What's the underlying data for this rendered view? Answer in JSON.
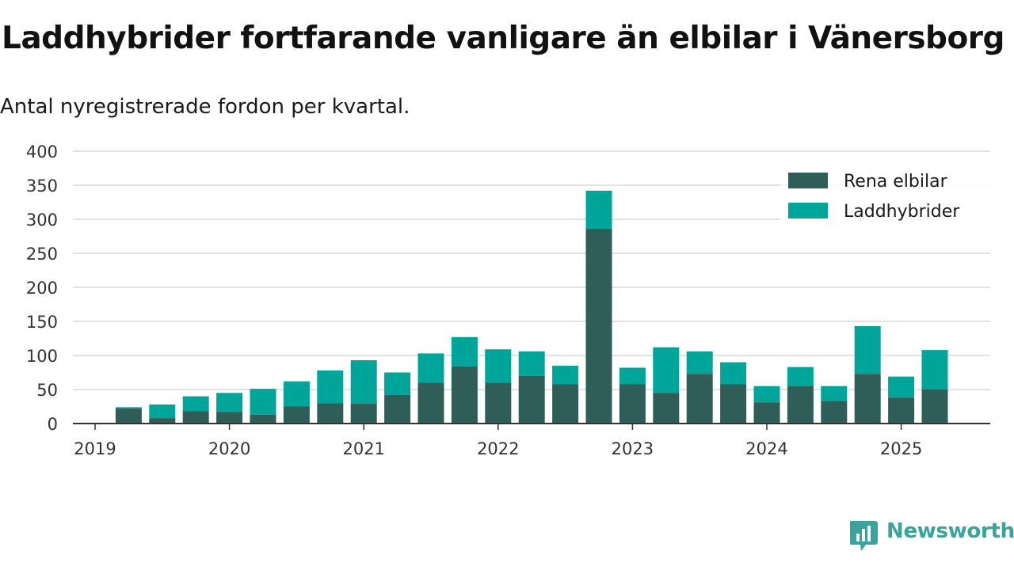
{
  "header": {
    "title": "Laddhybrider fortfarande vanligare än elbilar i Vänersborg",
    "subtitle": "Antal nyregistrerade fordon per kvartal."
  },
  "brand": {
    "name": "Newsworthy",
    "color": "#3aa39c"
  },
  "colors": {
    "elbilar": "#2f5e58",
    "laddhybrider": "#00a59a",
    "grid": "#d9d9d9",
    "axis": "#333333"
  },
  "chart_data": {
    "type": "bar",
    "stacked": true,
    "title": "Laddhybrider fortfarande vanligare än elbilar i Vänersborg",
    "subtitle": "Antal nyregistrerade fordon per kvartal.",
    "x_tick_labels": [
      "2019",
      "2020",
      "2021",
      "2022",
      "2023",
      "2024",
      "2025"
    ],
    "y_ticks": [
      0,
      50,
      100,
      150,
      200,
      250,
      300,
      350,
      400
    ],
    "ylim": [
      0,
      400
    ],
    "grid": true,
    "legend_position": "top-right",
    "categories": [
      "2019 Q2",
      "2019 Q3",
      "2019 Q4",
      "2020 Q1",
      "2020 Q2",
      "2020 Q3",
      "2020 Q4",
      "2021 Q1",
      "2021 Q2",
      "2021 Q3",
      "2021 Q4",
      "2022 Q1",
      "2022 Q2",
      "2022 Q3",
      "2022 Q4",
      "2023 Q1",
      "2023 Q2",
      "2023 Q3",
      "2023 Q4",
      "2024 Q1",
      "2024 Q2",
      "2024 Q3",
      "2024 Q4",
      "2025 Q1",
      "2025 Q2"
    ],
    "series": [
      {
        "name": "Rena elbilar",
        "values": [
          22,
          8,
          18,
          17,
          13,
          25,
          30,
          29,
          42,
          60,
          84,
          60,
          70,
          58,
          286,
          58,
          45,
          73,
          58,
          31,
          55,
          33,
          73,
          38,
          50
        ]
      },
      {
        "name": "Laddhybrider",
        "values": [
          2,
          20,
          22,
          28,
          38,
          37,
          48,
          64,
          33,
          43,
          43,
          49,
          36,
          27,
          56,
          24,
          67,
          33,
          32,
          24,
          28,
          22,
          70,
          31,
          58
        ]
      }
    ]
  }
}
